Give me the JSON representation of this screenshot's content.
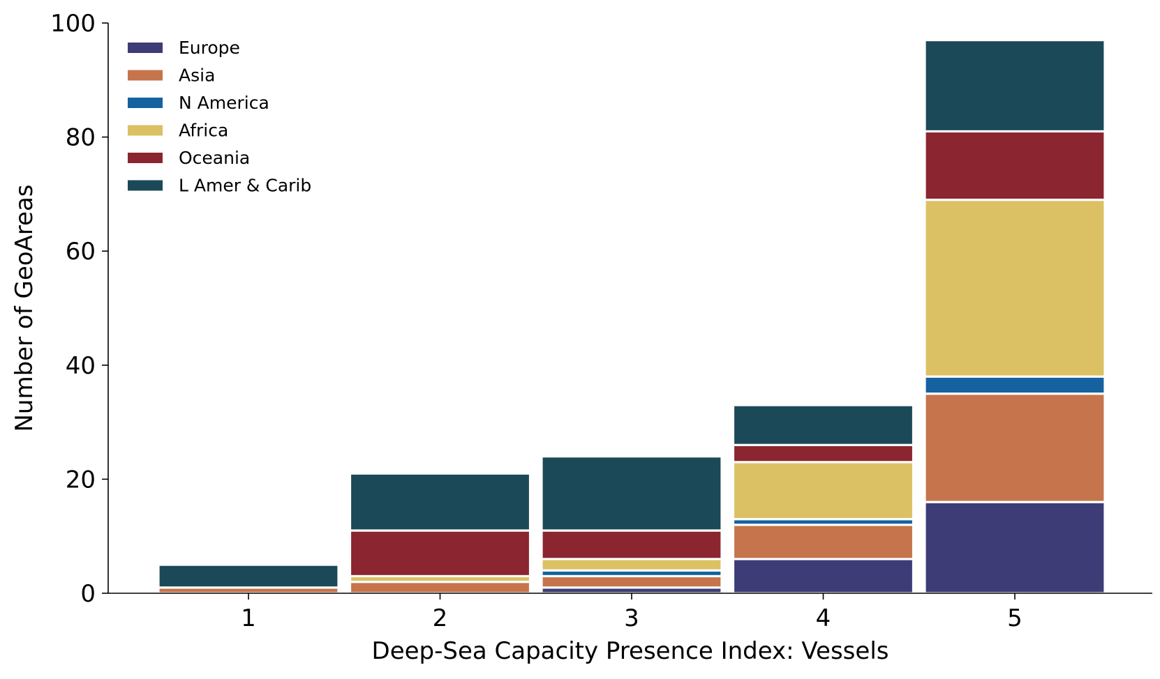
{
  "chart_data": {
    "type": "bar",
    "stacked": true,
    "title": "",
    "xlabel": "Deep-Sea Capacity Presence Index: Vessels",
    "ylabel": "Number of GeoAreas",
    "categories": [
      "1",
      "2",
      "3",
      "4",
      "5"
    ],
    "ylim": [
      0,
      100
    ],
    "yticks": [
      0,
      20,
      40,
      60,
      80,
      100
    ],
    "grid": false,
    "legend_position": "top-left",
    "series": [
      {
        "name": "Europe",
        "color": "#3d3c76",
        "values": [
          0,
          0,
          1,
          6,
          16
        ]
      },
      {
        "name": "Asia",
        "color": "#c5744c",
        "values": [
          1,
          2,
          2,
          6,
          19
        ]
      },
      {
        "name": "N America",
        "color": "#1462a0",
        "values": [
          0,
          0,
          1,
          1,
          3
        ]
      },
      {
        "name": "Africa",
        "color": "#dbc163",
        "values": [
          0,
          1,
          2,
          10,
          31
        ]
      },
      {
        "name": "Oceania",
        "color": "#8b2530",
        "values": [
          0,
          8,
          5,
          3,
          12
        ]
      },
      {
        "name": "L Amer & Carib",
        "color": "#1b4958",
        "values": [
          4,
          10,
          13,
          7,
          16
        ]
      }
    ]
  }
}
